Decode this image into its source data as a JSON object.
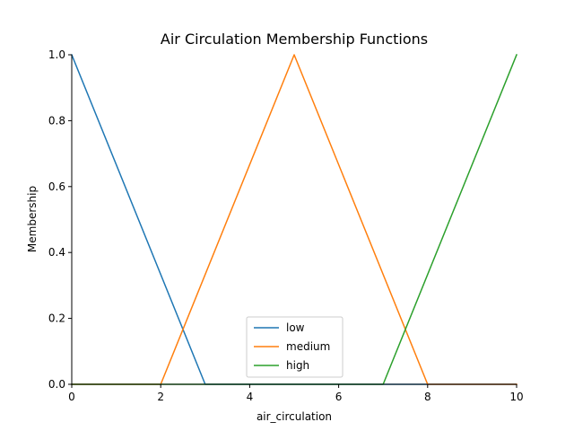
{
  "chart_data": {
    "type": "line",
    "title": "Air Circulation Membership Functions",
    "xlabel": "air_circulation",
    "ylabel": "Membership",
    "xlim": [
      0,
      10
    ],
    "ylim": [
      0,
      1
    ],
    "xticks": [
      "0",
      "2",
      "4",
      "6",
      "8",
      "10"
    ],
    "yticks": [
      "0.0",
      "0.2",
      "0.4",
      "0.6",
      "0.8",
      "1.0"
    ],
    "grid": false,
    "legend_position": "bottom-center",
    "series": [
      {
        "name": "low",
        "color": "#1f77b4",
        "x": [
          0,
          3,
          10
        ],
        "y": [
          1,
          0,
          0
        ]
      },
      {
        "name": "medium",
        "color": "#ff7f0e",
        "x": [
          0,
          2,
          5,
          8,
          10
        ],
        "y": [
          0,
          0,
          1,
          0,
          0
        ]
      },
      {
        "name": "high",
        "color": "#2ca02c",
        "x": [
          0,
          7,
          10
        ],
        "y": [
          0,
          0,
          1
        ]
      }
    ]
  }
}
